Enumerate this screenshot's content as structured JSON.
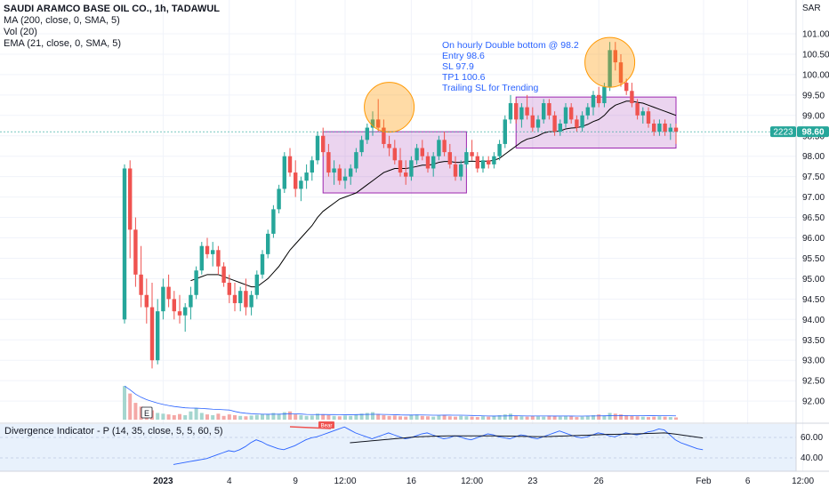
{
  "header": {
    "title": "SAUDI ARAMCO BASE OIL CO., 1h, TADAWUL",
    "currency": "SAR",
    "indicators": [
      "MA (200, close, 0, SMA, 5)",
      "Vol (20)",
      "EMA (21, close, 0, SMA, 5)"
    ]
  },
  "annotation": {
    "lines": [
      "On hourly Double bottom @ 98.2",
      "Entry 98.6",
      "SL 97.9",
      "TP1 100.6",
      "Trailing SL for Trending"
    ]
  },
  "price_tag": {
    "countdown": "2223",
    "price": "98.60"
  },
  "earnings_marker": "E",
  "oscillator": {
    "title": "Divergence Indicator - P (14, 35, close, 5, 5, 60, 5)",
    "ticks": [
      "60.00",
      "40.00"
    ],
    "bear_label": "Bear"
  },
  "colors": {
    "up": "#26a69a",
    "down": "#ef5350",
    "ema": "#000000",
    "box": "#9c27b0",
    "circle": "#ff9800",
    "osc": "#2962ff"
  },
  "chart_data": {
    "type": "candlestick",
    "symbol": "SAUDI ARAMCO BASE OIL CO.",
    "interval": "1h",
    "y_axis": {
      "ticks": [
        "101.00",
        "100.50",
        "100.00",
        "99.50",
        "99.00",
        "98.50",
        "98.00",
        "97.50",
        "97.00",
        "96.50",
        "96.00",
        "95.50",
        "95.00",
        "94.50",
        "94.00",
        "93.50",
        "93.00",
        "92.50",
        "92.00"
      ],
      "range": [
        91.8,
        101.4
      ]
    },
    "x_axis": {
      "ticks": [
        {
          "label": "2023",
          "i": 7
        },
        {
          "label": "4",
          "i": 19
        },
        {
          "label": "9",
          "i": 31
        },
        {
          "label": "12:00",
          "i": 40
        },
        {
          "label": "16",
          "i": 52
        },
        {
          "label": "12:00",
          "i": 63
        },
        {
          "label": "23",
          "i": 74
        },
        {
          "label": "26",
          "i": 86
        },
        {
          "label": "Feb",
          "i": 105
        },
        {
          "label": "6",
          "i": 113
        },
        {
          "label": "12:00",
          "i": 123
        }
      ]
    },
    "candles": [
      [
        94.0,
        97.8,
        93.9,
        97.7
      ],
      [
        97.7,
        97.9,
        95.5,
        96.2
      ],
      [
        96.2,
        96.5,
        94.8,
        95.1
      ],
      [
        95.1,
        95.8,
        94.3,
        94.6
      ],
      [
        94.6,
        95.0,
        93.9,
        94.3
      ],
      [
        94.3,
        94.9,
        92.8,
        93.0
      ],
      [
        93.0,
        94.5,
        92.9,
        94.2
      ],
      [
        94.2,
        95.0,
        94.0,
        94.8
      ],
      [
        94.8,
        95.1,
        94.3,
        94.5
      ],
      [
        94.5,
        94.7,
        94.0,
        94.2
      ],
      [
        94.2,
        94.6,
        93.9,
        94.1
      ],
      [
        94.1,
        94.4,
        93.7,
        94.3
      ],
      [
        94.3,
        94.8,
        94.0,
        94.6
      ],
      [
        94.6,
        95.3,
        94.5,
        95.2
      ],
      [
        95.2,
        95.9,
        95.1,
        95.8
      ],
      [
        95.8,
        96.0,
        95.5,
        95.6
      ],
      [
        95.6,
        95.9,
        95.3,
        95.7
      ],
      [
        95.7,
        95.8,
        95.1,
        95.3
      ],
      [
        95.3,
        95.4,
        94.8,
        94.9
      ],
      [
        94.9,
        95.1,
        94.4,
        94.6
      ],
      [
        94.6,
        94.9,
        94.2,
        94.4
      ],
      [
        94.4,
        94.8,
        94.2,
        94.7
      ],
      [
        94.7,
        95.0,
        94.1,
        94.3
      ],
      [
        94.3,
        94.7,
        94.1,
        94.6
      ],
      [
        94.6,
        95.2,
        94.5,
        95.1
      ],
      [
        95.1,
        95.7,
        95.0,
        95.6
      ],
      [
        95.6,
        96.2,
        95.5,
        96.1
      ],
      [
        96.1,
        96.8,
        96.0,
        96.7
      ],
      [
        96.7,
        97.3,
        96.6,
        97.2
      ],
      [
        97.2,
        98.1,
        97.1,
        98.0
      ],
      [
        98.0,
        98.2,
        97.5,
        97.6
      ],
      [
        97.6,
        97.9,
        97.0,
        97.2
      ],
      [
        97.2,
        97.5,
        96.9,
        97.4
      ],
      [
        97.4,
        97.8,
        97.2,
        97.6
      ],
      [
        97.6,
        98.0,
        97.4,
        97.9
      ],
      [
        97.9,
        98.6,
        97.8,
        98.5
      ],
      [
        98.5,
        98.7,
        98.0,
        98.1
      ],
      [
        98.1,
        98.3,
        97.5,
        97.6
      ],
      [
        97.6,
        97.9,
        97.3,
        97.7
      ],
      [
        97.7,
        97.8,
        97.3,
        97.4
      ],
      [
        97.4,
        97.7,
        97.2,
        97.5
      ],
      [
        97.5,
        97.8,
        97.3,
        97.7
      ],
      [
        97.7,
        98.2,
        97.6,
        98.1
      ],
      [
        98.1,
        98.5,
        98.0,
        98.4
      ],
      [
        98.4,
        98.8,
        98.3,
        98.7
      ],
      [
        98.7,
        99.1,
        98.5,
        98.9
      ],
      [
        98.9,
        99.4,
        98.6,
        98.7
      ],
      [
        98.7,
        98.9,
        98.2,
        98.3
      ],
      [
        98.3,
        98.5,
        98.0,
        98.2
      ],
      [
        98.2,
        98.4,
        97.8,
        97.9
      ],
      [
        97.9,
        98.2,
        97.5,
        97.6
      ],
      [
        97.6,
        97.9,
        97.3,
        97.5
      ],
      [
        97.5,
        98.0,
        97.4,
        97.9
      ],
      [
        97.9,
        98.3,
        97.8,
        98.2
      ],
      [
        98.2,
        98.4,
        97.9,
        98.0
      ],
      [
        98.0,
        98.1,
        97.6,
        97.7
      ],
      [
        97.7,
        98.1,
        97.5,
        98.0
      ],
      [
        98.0,
        98.5,
        97.9,
        98.4
      ],
      [
        98.4,
        98.6,
        98.0,
        98.1
      ],
      [
        98.1,
        98.3,
        97.7,
        97.8
      ],
      [
        97.8,
        98.0,
        97.4,
        97.5
      ],
      [
        97.5,
        97.9,
        97.4,
        97.8
      ],
      [
        97.8,
        98.2,
        97.7,
        98.1
      ],
      [
        98.1,
        98.4,
        97.9,
        98.0
      ],
      [
        98.0,
        98.1,
        97.6,
        97.7
      ],
      [
        97.7,
        98.0,
        97.6,
        97.9
      ],
      [
        97.9,
        98.0,
        97.7,
        97.8
      ],
      [
        97.8,
        98.1,
        97.7,
        98.0
      ],
      [
        98.0,
        98.4,
        97.9,
        98.3
      ],
      [
        98.3,
        99.0,
        98.2,
        98.9
      ],
      [
        98.9,
        99.5,
        98.8,
        99.3
      ],
      [
        99.3,
        99.4,
        98.8,
        98.9
      ],
      [
        98.9,
        99.3,
        98.7,
        99.2
      ],
      [
        99.2,
        99.5,
        98.9,
        99.0
      ],
      [
        99.0,
        99.2,
        98.6,
        98.7
      ],
      [
        98.7,
        99.0,
        98.6,
        98.9
      ],
      [
        98.9,
        99.4,
        98.8,
        99.3
      ],
      [
        99.3,
        99.4,
        98.9,
        99.0
      ],
      [
        99.0,
        99.1,
        98.5,
        98.6
      ],
      [
        98.6,
        98.9,
        98.5,
        98.8
      ],
      [
        98.8,
        99.3,
        98.7,
        99.2
      ],
      [
        99.2,
        99.3,
        98.8,
        98.9
      ],
      [
        98.9,
        99.0,
        98.6,
        98.7
      ],
      [
        98.7,
        99.1,
        98.6,
        99.0
      ],
      [
        99.0,
        99.3,
        98.9,
        99.2
      ],
      [
        99.2,
        99.6,
        99.0,
        99.5
      ],
      [
        99.5,
        99.7,
        99.2,
        99.3
      ],
      [
        99.3,
        99.8,
        99.2,
        99.7
      ],
      [
        99.7,
        100.8,
        99.6,
        100.6
      ],
      [
        100.6,
        100.8,
        100.1,
        100.3
      ],
      [
        100.3,
        100.5,
        99.7,
        99.8
      ],
      [
        99.8,
        99.9,
        99.5,
        99.6
      ],
      [
        99.6,
        99.8,
        99.2,
        99.3
      ],
      [
        99.3,
        99.4,
        98.9,
        99.0
      ],
      [
        99.0,
        99.2,
        98.8,
        99.1
      ],
      [
        99.1,
        99.2,
        98.7,
        98.8
      ],
      [
        98.8,
        98.9,
        98.5,
        98.6
      ],
      [
        98.6,
        98.9,
        98.5,
        98.8
      ],
      [
        98.8,
        98.9,
        98.5,
        98.6
      ],
      [
        98.6,
        98.8,
        98.4,
        98.7
      ],
      [
        98.7,
        98.8,
        98.3,
        98.6
      ]
    ],
    "volume": [
      90,
      70,
      45,
      35,
      28,
      25,
      18,
      16,
      14,
      12,
      15,
      12,
      22,
      30,
      18,
      14,
      12,
      16,
      10,
      14,
      12,
      10,
      9,
      11,
      13,
      15,
      14,
      18,
      16,
      20,
      22,
      14,
      12,
      10,
      11,
      16,
      13,
      12,
      10,
      9,
      11,
      10,
      14,
      16,
      18,
      20,
      15,
      12,
      10,
      11,
      9,
      8,
      12,
      14,
      10,
      9,
      8,
      11,
      13,
      9,
      8,
      10,
      9,
      8,
      7,
      9,
      8,
      10,
      12,
      14,
      16,
      10,
      9,
      8,
      10,
      9,
      8,
      11,
      9,
      8,
      10,
      9,
      7,
      8,
      10,
      12,
      14,
      11,
      18,
      16,
      14,
      12,
      10,
      9,
      8,
      7,
      8,
      9,
      8,
      7,
      6
    ],
    "ema": [
      95.8,
      95.85,
      95.8,
      95.7,
      95.6,
      95.4,
      95.3,
      95.25,
      95.2,
      95.1,
      95.0,
      94.95,
      94.95,
      95.0,
      95.05,
      95.1,
      95.1,
      95.1,
      95.05,
      95.0,
      94.95,
      94.9,
      94.85,
      94.8,
      94.8,
      94.9,
      95.0,
      95.15,
      95.3,
      95.5,
      95.7,
      95.85,
      96.0,
      96.15,
      96.3,
      96.5,
      96.65,
      96.75,
      96.85,
      96.95,
      97.0,
      97.05,
      97.1,
      97.2,
      97.3,
      97.4,
      97.5,
      97.6,
      97.65,
      97.7,
      97.7,
      97.7,
      97.72,
      97.75,
      97.78,
      97.78,
      97.8,
      97.85,
      97.87,
      97.87,
      97.85,
      97.85,
      97.87,
      97.88,
      97.87,
      97.88,
      97.88,
      97.9,
      97.95,
      98.05,
      98.15,
      98.25,
      98.35,
      98.42,
      98.45,
      98.5,
      98.57,
      98.6,
      98.6,
      98.62,
      98.67,
      98.69,
      98.7,
      98.73,
      98.78,
      98.85,
      98.9,
      99.0,
      99.15,
      99.25,
      99.3,
      99.35,
      99.35,
      99.32,
      99.3,
      99.25,
      99.2,
      99.15,
      99.1,
      99.05,
      99.0
    ],
    "oscillator": {
      "line": [
        30,
        31,
        32,
        33,
        34,
        35,
        36,
        38,
        40,
        42,
        44,
        43,
        45,
        48,
        52,
        55,
        53,
        50,
        48,
        46,
        45,
        47,
        49,
        52,
        55,
        57,
        58,
        60,
        62,
        64,
        66,
        68,
        65,
        62,
        60,
        58,
        56,
        58,
        60,
        62,
        60,
        58,
        56,
        57,
        59,
        61,
        62,
        60,
        58,
        56,
        57,
        59,
        58,
        56,
        55,
        57,
        59,
        61,
        60,
        58,
        57,
        56,
        58,
        60,
        59,
        57,
        56,
        58,
        60,
        62,
        64,
        62,
        60,
        58,
        57,
        58,
        60,
        62,
        61,
        59,
        58,
        60,
        62,
        61,
        60,
        61,
        63,
        64,
        66,
        65,
        60,
        55,
        52,
        50,
        48,
        46,
        45,
        44,
        44,
        43,
        43
      ],
      "ma": [
        null,
        null,
        null,
        null,
        null,
        null,
        null,
        null,
        null,
        null,
        null,
        null,
        null,
        null,
        null,
        null,
        null,
        null,
        null,
        null,
        null,
        null,
        null,
        null,
        null,
        null,
        null,
        null,
        null,
        null,
        null,
        null,
        52,
        52.5,
        53,
        53.5,
        54,
        54.5,
        55,
        55.5,
        56,
        56.5,
        57,
        57.5,
        58,
        58.2,
        58.4,
        58.6,
        58.8,
        58.9,
        59,
        59,
        59,
        59,
        59,
        59,
        59,
        59,
        59,
        58.9,
        58.8,
        58.7,
        58.6,
        58.5,
        58.4,
        58.3,
        58.2,
        58.2,
        58.3,
        58.5,
        58.7,
        58.9,
        59.1,
        59.3,
        59.5,
        59.7,
        59.9,
        60.1,
        60.3,
        60.5,
        60.6,
        60.7,
        60.8,
        60.9,
        61,
        61.2,
        61.4,
        61.6,
        61.8,
        62,
        61.5,
        60.8,
        60,
        59.2,
        58.4,
        57.6,
        56.8,
        56,
        55.2,
        54.4,
        53.6
      ],
      "ylim": [
        25,
        70
      ]
    },
    "boxes": [
      {
        "i0": 36,
        "i1": 62,
        "y0": 97.1,
        "y1": 98.6
      },
      {
        "i0": 71,
        "i1": 100,
        "y0": 98.2,
        "y1": 99.45
      }
    ],
    "circles": [
      {
        "i": 48,
        "y": 99.2
      },
      {
        "i": 88,
        "y": 100.3
      }
    ]
  }
}
